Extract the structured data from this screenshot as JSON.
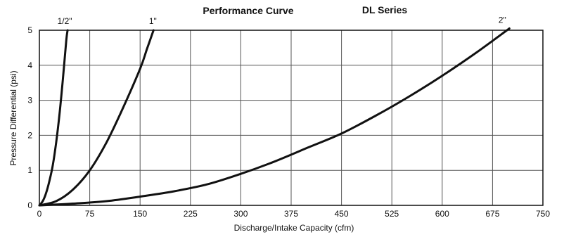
{
  "chart_data": {
    "type": "line",
    "title": "Performance Curve",
    "subtitle": "DL Series",
    "xlabel": "Discharge/Intake Capacity (cfm)",
    "ylabel": "Pressure Differential (psi)",
    "xlim": [
      0,
      750
    ],
    "ylim": [
      0,
      5
    ],
    "x_ticks": [
      "0",
      "75",
      "150",
      "225",
      "300",
      "375",
      "450",
      "525",
      "600",
      "675",
      "750"
    ],
    "y_ticks": [
      "0",
      "1",
      "2",
      "3",
      "4",
      "5"
    ],
    "grid": true,
    "series": [
      {
        "name": "1/2\"",
        "x": [
          0,
          5,
          10,
          15,
          20,
          25,
          30,
          35,
          40,
          42
        ],
        "y": [
          0,
          0.12,
          0.35,
          0.7,
          1.15,
          1.8,
          2.6,
          3.6,
          4.7,
          5.0
        ]
      },
      {
        "name": "1\"",
        "x": [
          0,
          25,
          50,
          75,
          100,
          125,
          150,
          160,
          170
        ],
        "y": [
          0,
          0.12,
          0.45,
          1.0,
          1.8,
          2.8,
          3.9,
          4.45,
          5.0
        ]
      },
      {
        "name": "2\"",
        "x": [
          0,
          50,
          100,
          150,
          200,
          250,
          300,
          350,
          400,
          450,
          500,
          550,
          600,
          650,
          700
        ],
        "y": [
          0,
          0.05,
          0.12,
          0.25,
          0.4,
          0.6,
          0.9,
          1.25,
          1.65,
          2.05,
          2.55,
          3.1,
          3.7,
          4.35,
          5.05
        ]
      }
    ]
  }
}
